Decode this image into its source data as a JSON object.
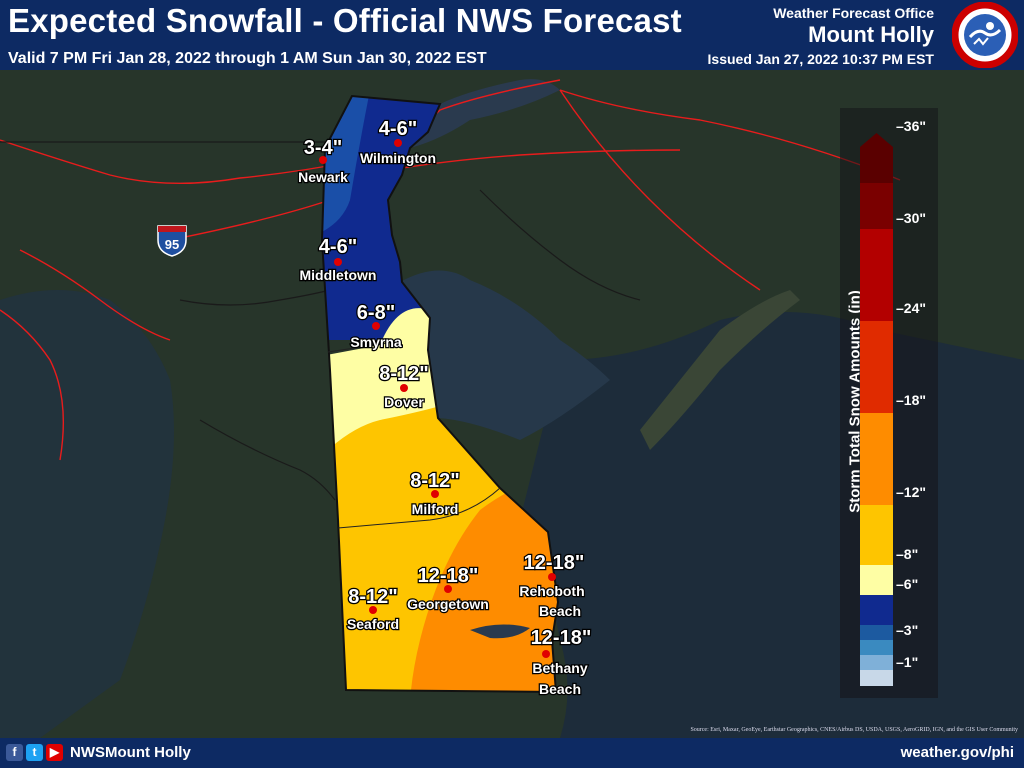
{
  "header": {
    "title": "Expected Snowfall - Official NWS Forecast",
    "valid": "Valid 7 PM Fri Jan 28, 2022 through 1 AM Sun Jan 30, 2022 EST",
    "office_label": "Weather Forecast Office",
    "office_name": "Mount Holly",
    "issued": "Issued Jan 27, 2022 10:37 PM EST",
    "logo_text": "NATIONAL WEATHER SERVICE"
  },
  "map": {
    "highway_shield": "95",
    "cities": [
      {
        "name": "Wilmington",
        "amount": "4-6\""
      },
      {
        "name": "Newark",
        "amount": "3-4\""
      },
      {
        "name": "Middletown",
        "amount": "4-6\""
      },
      {
        "name": "Smyrna",
        "amount": "6-8\""
      },
      {
        "name": "Dover",
        "amount": "8-12\""
      },
      {
        "name": "Milford",
        "amount": "8-12\""
      },
      {
        "name": "Rehoboth Beach",
        "amount": "12-18\""
      },
      {
        "name": "Georgetown",
        "amount": "12-18\""
      },
      {
        "name": "Seaford",
        "amount": "8-12\""
      },
      {
        "name": "Bethany Beach",
        "amount": "12-18\""
      }
    ]
  },
  "legend": {
    "title": "Storm Total Snow Amounts (in)",
    "ticks": [
      "36\"",
      "30\"",
      "24\"",
      "18\"",
      "12\"",
      "8\"",
      "6\"",
      "3\"",
      "1\""
    ],
    "colors": [
      "#c8d8e8",
      "#7fb0d8",
      "#3a8ac0",
      "#1c5aa0",
      "#102a8f",
      "#fefea4",
      "#fec500",
      "#fe8c00",
      "#e02b00",
      "#b30000",
      "#7a0000",
      "#5a0000"
    ]
  },
  "footer": {
    "handle": "NWSMount Holly",
    "website": "weather.gov/phi",
    "credit": "Source: Esri, Maxar, GeoEye, Earthstar Geographics, CNES/Airbus DS, USDA, USGS, AeroGRID, IGN, and the GIS User Community"
  },
  "colors": {
    "header_bg": "#0d2a63",
    "snow_3_4": "#1a4fa8",
    "snow_4_6": "#102a8f",
    "snow_6_8": "#fefea4",
    "snow_8_12": "#fec500",
    "snow_12_18": "#fe8c00",
    "city_dot": "#e00000"
  }
}
